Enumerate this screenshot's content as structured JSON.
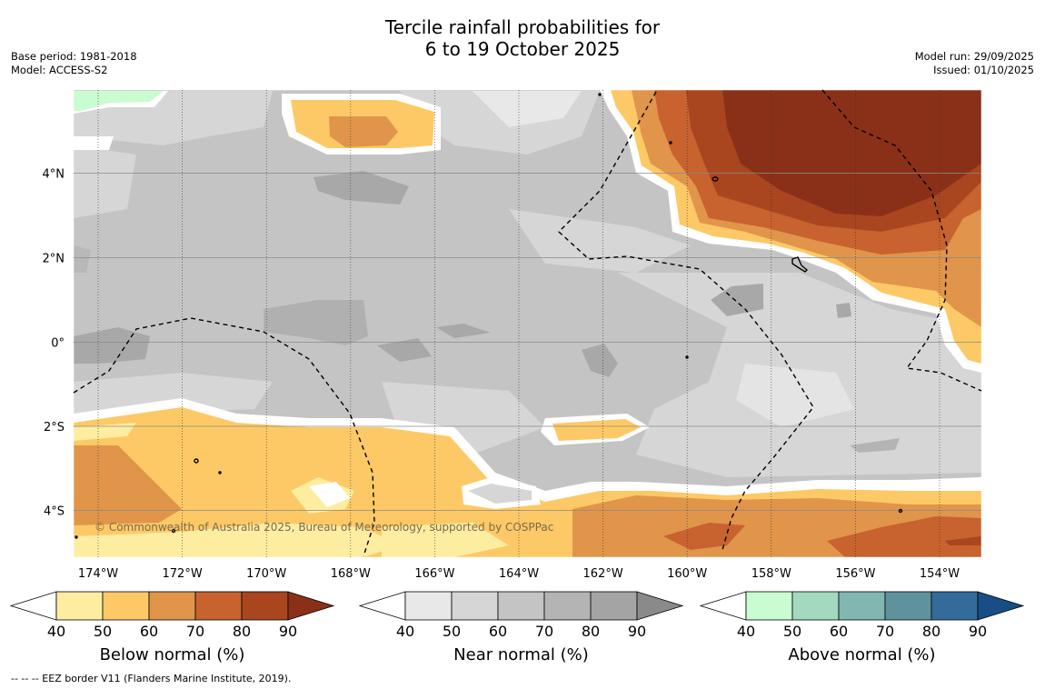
{
  "title": {
    "line1": "Tercile rainfall probabilities for",
    "line2": "6 to 19 October 2025"
  },
  "meta_left": {
    "base_period": "Base period: 1981-2018",
    "model": "Model: ACCESS-S2"
  },
  "meta_right": {
    "model_run": "Model run: 29/09/2025",
    "issued": "Issued: 01/10/2025"
  },
  "map": {
    "lat_labels": [
      "4°N",
      "2°N",
      "0°",
      "2°S",
      "4°S"
    ],
    "lon_labels": [
      "174°W",
      "172°W",
      "170°W",
      "168°W",
      "166°W",
      "164°W",
      "162°W",
      "160°W",
      "158°W",
      "156°W",
      "154°W"
    ],
    "copyright": "© Commonwealth of Australia 2025, Bureau of Meteorology, supported by COSPPac"
  },
  "colorbars": [
    {
      "title": "Below normal (%)",
      "ticks": [
        "40",
        "50",
        "60",
        "70",
        "80",
        "90"
      ],
      "colors": [
        "#fdeda1",
        "#fdc966",
        "#e0954a",
        "#c8622f",
        "#a9461f",
        "#8b3018"
      ]
    },
    {
      "title": "Near normal (%)",
      "ticks": [
        "40",
        "50",
        "60",
        "70",
        "80",
        "90"
      ],
      "colors": [
        "#e8e8e8",
        "#d6d6d6",
        "#c4c4c4",
        "#b4b4b4",
        "#a4a4a4",
        "#8a8a8a"
      ]
    },
    {
      "title": "Above normal (%)",
      "ticks": [
        "40",
        "50",
        "60",
        "70",
        "80",
        "90"
      ],
      "colors": [
        "#c9fcd0",
        "#a3d9bf",
        "#82b7b1",
        "#5e939e",
        "#336b9b",
        "#184e85"
      ]
    }
  ],
  "footnote": "--  --  -- EEZ border V11 (Flanders Marine Institute, 2019)."
}
